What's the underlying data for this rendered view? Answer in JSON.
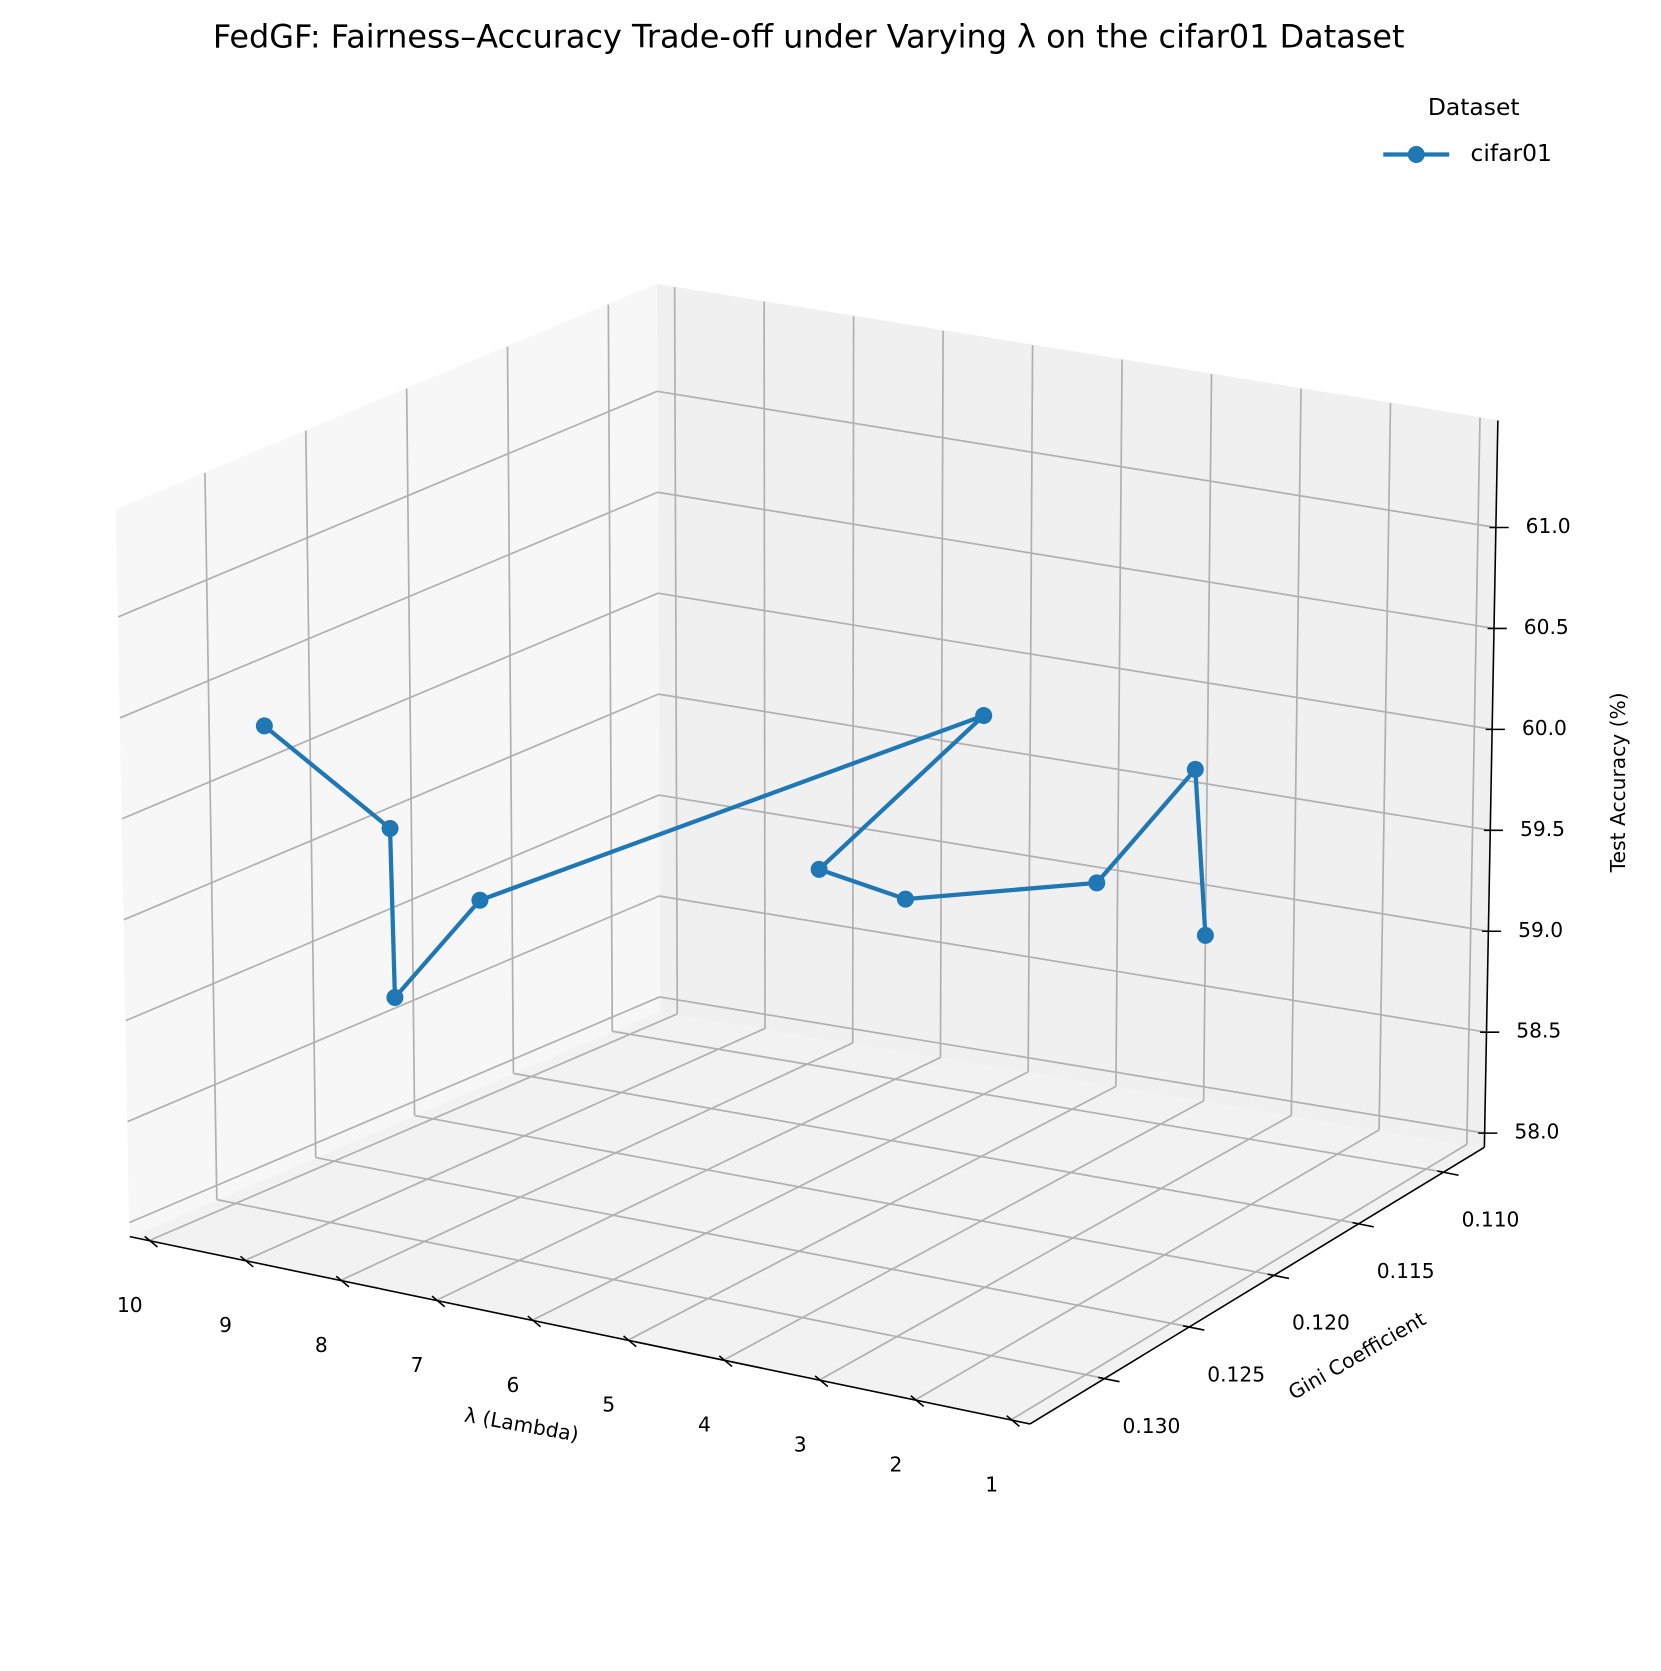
{
  "chart_data": {
    "type": "line3d",
    "title": "FedGF: Fairness–Accuracy Trade-off under Varying λ on the cifar01 Dataset",
    "xlabel": "λ (Lambda)",
    "ylabel": "Gini Coefficient",
    "zlabel": "Test Accuracy (%)",
    "x": [
      10,
      9,
      8,
      7,
      6,
      5,
      4,
      3,
      2,
      1
    ],
    "series": [
      {
        "name": "cifar01",
        "color": "#1f77b4",
        "y": [
          0.1282,
          0.1267,
          0.1314,
          0.1319,
          0.1101,
          0.1239,
          0.1243,
          0.1188,
          0.1185,
          0.1232
        ],
        "z": [
          60.22,
          59.74,
          59.2,
          59.8,
          59.81,
          59.77,
          59.73,
          59.63,
          60.26,
          59.76
        ]
      }
    ],
    "xlim": [
      0.8,
      10.2
    ],
    "ylim": [
      0.1076,
      0.1344
    ],
    "zlim": [
      57.93,
      61.53
    ],
    "xticks": [
      1,
      2,
      3,
      4,
      5,
      6,
      7,
      8,
      9,
      10
    ],
    "yticks": [
      {
        "value": 0.11,
        "label": "0.110"
      },
      {
        "value": 0.115,
        "label": "0.115"
      },
      {
        "value": 0.12,
        "label": "0.120"
      },
      {
        "value": 0.125,
        "label": "0.125"
      },
      {
        "value": 0.13,
        "label": "0.130"
      }
    ],
    "zticks": [
      {
        "value": 58,
        "label": "58.0"
      },
      58.5,
      {
        "value": 59,
        "label": "59.0"
      },
      59.5,
      {
        "value": 60,
        "label": "60.0"
      },
      60.5,
      {
        "value": 61,
        "label": "61.0"
      }
    ],
    "grid": true,
    "legend_title": "Dataset",
    "legend": "upper right"
  }
}
